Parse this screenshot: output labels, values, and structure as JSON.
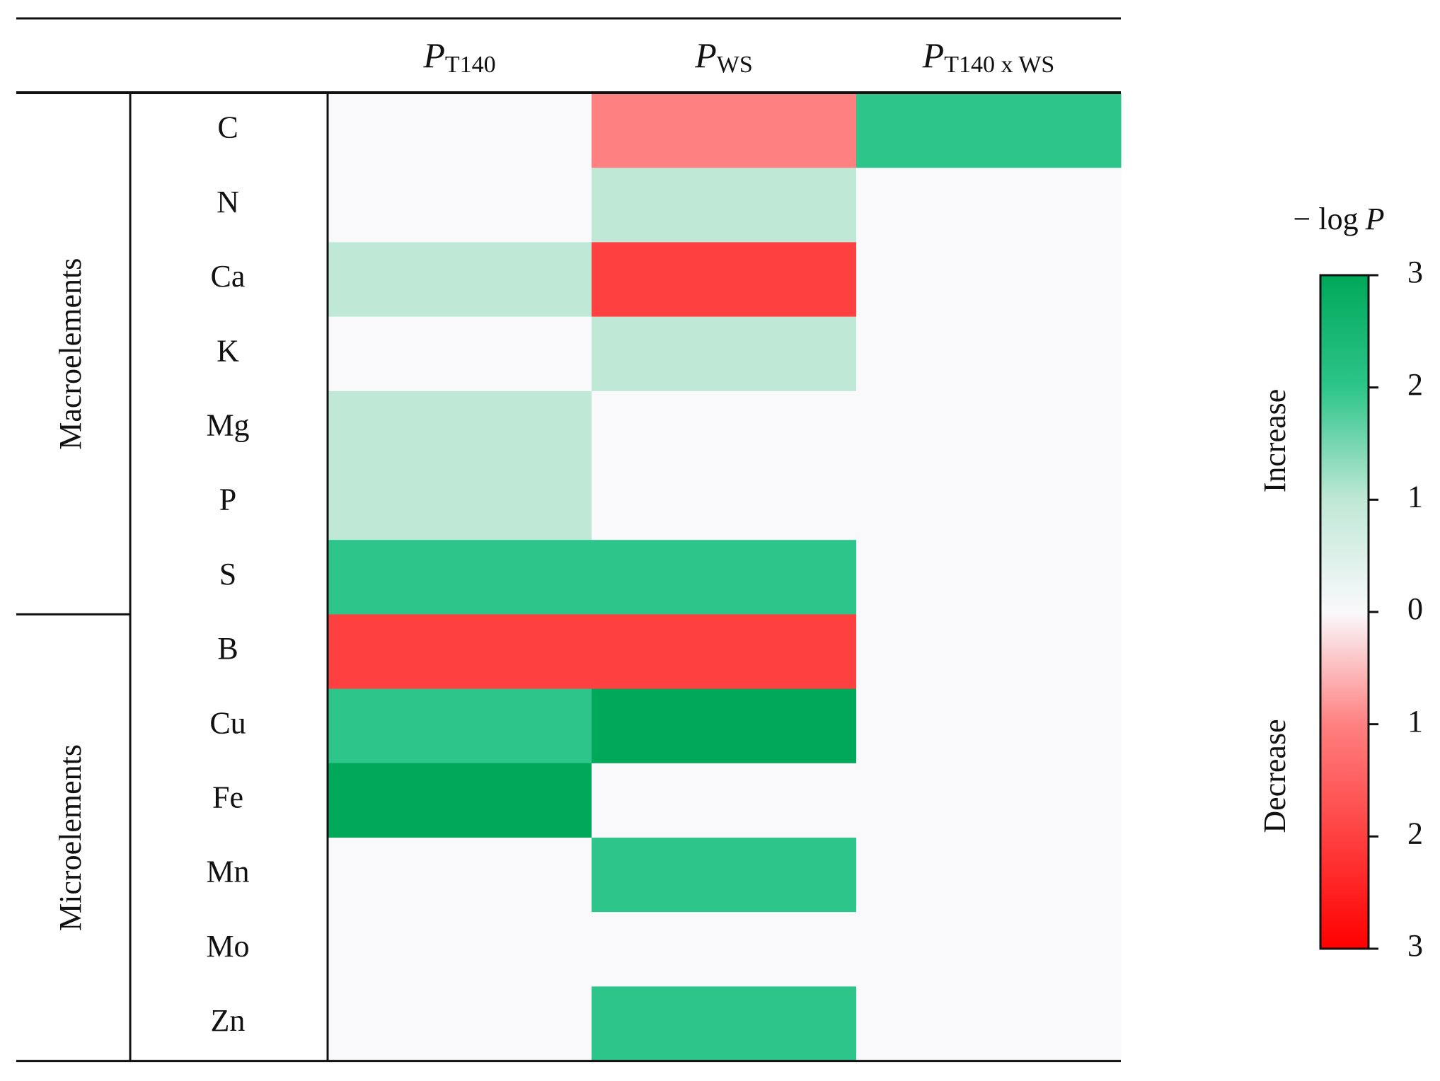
{
  "chart_data": {
    "type": "heatmap",
    "columns": [
      {
        "symbol": "P",
        "subscript": "T140"
      },
      {
        "symbol": "P",
        "subscript": "WS"
      },
      {
        "symbol": "P",
        "subscript": "T140 x WS"
      }
    ],
    "groups": [
      {
        "name": "Macroelements",
        "rows": [
          {
            "label": "C",
            "values": [
              0,
              -1,
              2
            ]
          },
          {
            "label": "N",
            "values": [
              0,
              1,
              0
            ]
          },
          {
            "label": "Ca",
            "values": [
              1,
              -2,
              0
            ]
          },
          {
            "label": "K",
            "values": [
              0,
              1,
              0
            ]
          },
          {
            "label": "Mg",
            "values": [
              1,
              0,
              0
            ]
          },
          {
            "label": "P",
            "values": [
              1,
              0,
              0
            ]
          },
          {
            "label": "S",
            "values": [
              2,
              2,
              0
            ]
          }
        ]
      },
      {
        "name": "Microelements",
        "rows": [
          {
            "label": "B",
            "values": [
              -2,
              -2,
              0
            ]
          },
          {
            "label": "Cu",
            "values": [
              2,
              3,
              0
            ]
          },
          {
            "label": "Fe",
            "values": [
              3,
              0,
              0
            ]
          },
          {
            "label": "Mn",
            "values": [
              0,
              2,
              0
            ]
          },
          {
            "label": "Mo",
            "values": [
              0,
              0,
              0
            ]
          },
          {
            "label": "Zn",
            "values": [
              0,
              2,
              0
            ]
          }
        ]
      }
    ],
    "colorbar_title": {
      "text": "− log",
      "symbol": "P"
    },
    "colorbar_side_labels": {
      "positive": "Increase",
      "negative": "Decrease"
    },
    "ylim": [
      -3,
      3
    ],
    "yticks": [
      {
        "value": -3,
        "label": "3"
      },
      {
        "value": -2,
        "label": "2"
      },
      {
        "value": -1,
        "label": "1"
      },
      0,
      1,
      2,
      3
    ],
    "colorscale": [
      {
        "value": -3,
        "color": "#ff0000"
      },
      {
        "value": -2,
        "color": "#ff4040"
      },
      {
        "value": -1,
        "color": "#ff8080"
      },
      {
        "value": 0,
        "color": "#f9f9fc"
      },
      {
        "value": 1,
        "color": "#c0e8d6"
      },
      {
        "value": 2,
        "color": "#2dc58a"
      },
      {
        "value": 3,
        "color": "#00a859"
      }
    ]
  }
}
